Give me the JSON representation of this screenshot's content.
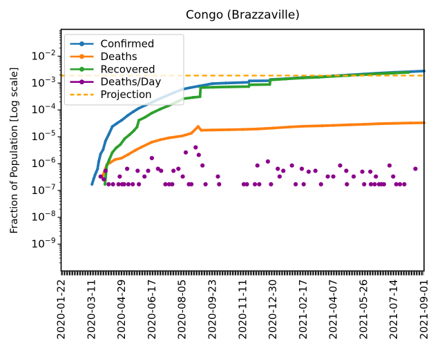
{
  "chart_data": {
    "type": "line",
    "title": "Congo (Brazzaville)",
    "ylabel": "Fraction of Population [Log scale]",
    "yscale": "log",
    "ylim": [
      1e-10,
      0.1
    ],
    "y_tick_exponents": [
      -2,
      -3,
      -4,
      -5,
      -6,
      -7,
      -8,
      -9
    ],
    "x_tick_labels": [
      "2020-01-22",
      "2020-03-11",
      "2020-04-29",
      "2020-06-17",
      "2020-08-05",
      "2020-09-23",
      "2020-11-11",
      "2020-12-30",
      "2021-02-17",
      "2021-04-07",
      "2021-05-26",
      "2021-07-14",
      "2021-09-01"
    ],
    "x_range_days": 588,
    "grid": false,
    "legend": {
      "position": "upper left",
      "entries": [
        {
          "label": "Confirmed",
          "color": "#1f77b4",
          "dashed": false,
          "marker": true
        },
        {
          "label": "Deaths",
          "color": "#ff7f0e",
          "dashed": false,
          "marker": true
        },
        {
          "label": "Recovered",
          "color": "#2ca02c",
          "dashed": false,
          "marker": true
        },
        {
          "label": "Deaths/Day",
          "color": "#8b008b",
          "dashed": false,
          "marker": true
        },
        {
          "label": "Projection",
          "color": "#ffa500",
          "dashed": true,
          "marker": false
        }
      ]
    },
    "projection": {
      "name": "Projection",
      "color": "#ffa500",
      "style": "dashed",
      "value": 0.0019
    },
    "series": [
      {
        "name": "Confirmed",
        "color": "#1f77b4",
        "kind": "line",
        "points": [
          [
            "2020-03-12",
            1.7e-07
          ],
          [
            "2020-03-15",
            2.8e-07
          ],
          [
            "2020-03-17",
            3.8e-07
          ],
          [
            "2020-03-19",
            4.9e-07
          ],
          [
            "2020-03-21",
            6.2e-07
          ],
          [
            "2020-03-23",
            1.2e-06
          ],
          [
            "2020-03-26",
            2.3e-06
          ],
          [
            "2020-03-30",
            3.3e-06
          ],
          [
            "2020-04-03",
            7e-06
          ],
          [
            "2020-04-08",
            1.2e-05
          ],
          [
            "2020-04-14",
            2.4e-05
          ],
          [
            "2020-04-21",
            3.1e-05
          ],
          [
            "2020-04-29",
            4.1e-05
          ],
          [
            "2020-05-09",
            6.2e-05
          ],
          [
            "2020-05-18",
            8.6e-05
          ],
          [
            "2020-05-27",
            0.000115
          ],
          [
            "2020-06-07",
            0.00015
          ],
          [
            "2020-06-17",
            0.00019
          ],
          [
            "2020-06-28",
            0.00025
          ],
          [
            "2020-07-10",
            0.00033
          ],
          [
            "2020-07-22",
            0.00043
          ],
          [
            "2020-08-05",
            0.00058
          ],
          [
            "2020-08-18",
            0.00067
          ],
          [
            "2020-09-01",
            0.00077
          ],
          [
            "2020-09-23",
            0.00095
          ],
          [
            "2020-10-15",
            0.001
          ],
          [
            "2020-11-11",
            0.00105
          ],
          [
            "2020-11-21",
            0.00107
          ],
          [
            "2020-11-22",
            0.0012
          ],
          [
            "2020-12-24",
            0.00122
          ],
          [
            "2020-12-26",
            0.00135
          ],
          [
            "2021-01-20",
            0.00145
          ],
          [
            "2021-02-17",
            0.0016
          ],
          [
            "2021-03-15",
            0.0017
          ],
          [
            "2021-04-07",
            0.00185
          ],
          [
            "2021-05-01",
            0.002
          ],
          [
            "2021-05-26",
            0.00215
          ],
          [
            "2021-06-15",
            0.0023
          ],
          [
            "2021-07-14",
            0.0025
          ],
          [
            "2021-08-10",
            0.00265
          ],
          [
            "2021-09-01",
            0.0028
          ]
        ]
      },
      {
        "name": "Deaths",
        "color": "#ff7f0e",
        "kind": "line",
        "points": [
          [
            "2020-03-29",
            3.3e-07
          ],
          [
            "2020-04-05",
            9e-07
          ],
          [
            "2020-04-11",
            1.1e-06
          ],
          [
            "2020-04-18",
            1.4e-06
          ],
          [
            "2020-04-29",
            1.6e-06
          ],
          [
            "2020-05-10",
            2.2e-06
          ],
          [
            "2020-05-21",
            3.1e-06
          ],
          [
            "2020-06-01",
            4.2e-06
          ],
          [
            "2020-06-17",
            6.3e-06
          ],
          [
            "2020-07-01",
            7.8e-06
          ],
          [
            "2020-07-15",
            9.1e-06
          ],
          [
            "2020-08-05",
            1.07e-05
          ],
          [
            "2020-08-20",
            1.35e-05
          ],
          [
            "2020-08-31",
            2.4e-05
          ],
          [
            "2020-09-05",
            1.75e-05
          ],
          [
            "2020-09-23",
            1.78e-05
          ],
          [
            "2020-10-20",
            1.82e-05
          ],
          [
            "2020-11-11",
            1.87e-05
          ],
          [
            "2020-12-05",
            1.95e-05
          ],
          [
            "2020-12-30",
            2.1e-05
          ],
          [
            "2021-01-25",
            2.3e-05
          ],
          [
            "2021-02-17",
            2.45e-05
          ],
          [
            "2021-03-20",
            2.55e-05
          ],
          [
            "2021-04-07",
            2.65e-05
          ],
          [
            "2021-05-05",
            2.8e-05
          ],
          [
            "2021-05-26",
            2.9e-05
          ],
          [
            "2021-06-20",
            3.05e-05
          ],
          [
            "2021-07-14",
            3.15e-05
          ],
          [
            "2021-08-10",
            3.25e-05
          ],
          [
            "2021-09-01",
            3.3e-05
          ]
        ]
      },
      {
        "name": "Recovered",
        "color": "#2ca02c",
        "kind": "line",
        "points": [
          [
            "2020-04-02",
            1.7e-07
          ],
          [
            "2020-04-05",
            8.5e-07
          ],
          [
            "2020-04-09",
            1.4e-06
          ],
          [
            "2020-04-14",
            2.6e-06
          ],
          [
            "2020-04-20",
            3.8e-06
          ],
          [
            "2020-04-27",
            5.1e-06
          ],
          [
            "2020-05-04",
            8.5e-06
          ],
          [
            "2020-05-12",
            1.2e-05
          ],
          [
            "2020-05-19",
            1.7e-05
          ],
          [
            "2020-05-24",
            2.3e-05
          ],
          [
            "2020-05-27",
            4.1e-05
          ],
          [
            "2020-06-06",
            5.3e-05
          ],
          [
            "2020-06-17",
            7.6e-05
          ],
          [
            "2020-06-30",
            0.000105
          ],
          [
            "2020-07-13",
            0.00014
          ],
          [
            "2020-07-26",
            0.00019
          ],
          [
            "2020-08-07",
            0.00026
          ],
          [
            "2020-08-22",
            0.00029
          ],
          [
            "2020-09-03",
            0.00031
          ],
          [
            "2020-09-04",
            0.00068
          ],
          [
            "2020-09-25",
            0.0007
          ],
          [
            "2020-10-20",
            0.00072
          ],
          [
            "2020-11-21",
            0.00074
          ],
          [
            "2020-11-22",
            0.00086
          ],
          [
            "2020-12-25",
            0.00088
          ],
          [
            "2020-12-26",
            0.0013
          ],
          [
            "2021-01-20",
            0.00142
          ],
          [
            "2021-02-17",
            0.00155
          ],
          [
            "2021-03-15",
            0.00165
          ],
          [
            "2021-04-07",
            0.00178
          ],
          [
            "2021-05-01",
            0.00192
          ],
          [
            "2021-05-26",
            0.00205
          ],
          [
            "2021-06-15",
            0.0022
          ],
          [
            "2021-07-14",
            0.00235
          ],
          [
            "2021-08-07",
            0.0025
          ]
        ]
      },
      {
        "name": "Deaths/Day",
        "color": "#8b008b",
        "kind": "scatter",
        "points": [
          [
            "2020-03-26",
            3.3e-07
          ],
          [
            "2020-03-31",
            2.6e-07
          ],
          [
            "2020-04-03",
            5.4e-07
          ],
          [
            "2020-04-08",
            1.7e-07
          ],
          [
            "2020-04-15",
            1.7e-07
          ],
          [
            "2020-04-24",
            1.7e-07
          ],
          [
            "2020-04-26",
            3.3e-07
          ],
          [
            "2020-04-30",
            1.7e-07
          ],
          [
            "2020-05-03",
            1.7e-07
          ],
          [
            "2020-05-08",
            6.4e-07
          ],
          [
            "2020-05-10",
            1.7e-07
          ],
          [
            "2020-05-17",
            1.7e-07
          ],
          [
            "2020-05-25",
            5.4e-07
          ],
          [
            "2020-05-27",
            1.7e-07
          ],
          [
            "2020-06-05",
            3.3e-07
          ],
          [
            "2020-06-11",
            5.4e-07
          ],
          [
            "2020-06-17",
            1.6e-06
          ],
          [
            "2020-06-27",
            6.4e-07
          ],
          [
            "2020-07-02",
            5.4e-07
          ],
          [
            "2020-07-09",
            1.7e-07
          ],
          [
            "2020-07-15",
            1.7e-07
          ],
          [
            "2020-07-20",
            1.7e-07
          ],
          [
            "2020-07-22",
            5.4e-07
          ],
          [
            "2020-07-30",
            6.4e-07
          ],
          [
            "2020-08-06",
            3.3e-07
          ],
          [
            "2020-08-11",
            2.6e-06
          ],
          [
            "2020-08-16",
            1.7e-07
          ],
          [
            "2020-08-20",
            1.7e-07
          ],
          [
            "2020-08-27",
            4e-06
          ],
          [
            "2020-09-01",
            2.1e-06
          ],
          [
            "2020-09-07",
            8.5e-07
          ],
          [
            "2020-09-12",
            1.7e-07
          ],
          [
            "2020-10-02",
            3.3e-07
          ],
          [
            "2020-10-04",
            1.7e-07
          ],
          [
            "2020-11-13",
            1.7e-07
          ],
          [
            "2020-11-18",
            1.7e-07
          ],
          [
            "2020-12-01",
            1.7e-07
          ],
          [
            "2020-12-05",
            8.5e-07
          ],
          [
            "2020-12-08",
            1.7e-07
          ],
          [
            "2020-12-22",
            1.2e-06
          ],
          [
            "2020-12-27",
            1.7e-07
          ],
          [
            "2021-01-07",
            6.4e-07
          ],
          [
            "2021-01-10",
            3.3e-07
          ],
          [
            "2021-01-16",
            5.4e-07
          ],
          [
            "2021-01-30",
            8.5e-07
          ],
          [
            "2021-02-05",
            1.7e-07
          ],
          [
            "2021-02-15",
            6.4e-07
          ],
          [
            "2021-02-18",
            1.7e-07
          ],
          [
            "2021-02-26",
            5e-07
          ],
          [
            "2021-03-09",
            5.4e-07
          ],
          [
            "2021-03-18",
            1.7e-07
          ],
          [
            "2021-03-29",
            3.3e-07
          ],
          [
            "2021-04-07",
            3.3e-07
          ],
          [
            "2021-04-18",
            8.5e-07
          ],
          [
            "2021-04-28",
            5.4e-07
          ],
          [
            "2021-04-29",
            1.7e-07
          ],
          [
            "2021-05-10",
            3.3e-07
          ],
          [
            "2021-05-24",
            5e-07
          ],
          [
            "2021-05-27",
            1.7e-07
          ],
          [
            "2021-06-06",
            5e-07
          ],
          [
            "2021-06-07",
            1.7e-07
          ],
          [
            "2021-06-13",
            1.7e-07
          ],
          [
            "2021-06-15",
            3.3e-07
          ],
          [
            "2021-06-20",
            1.7e-07
          ],
          [
            "2021-06-24",
            1.7e-07
          ],
          [
            "2021-06-28",
            1.7e-07
          ],
          [
            "2021-07-07",
            8.5e-07
          ],
          [
            "2021-07-13",
            3.3e-07
          ],
          [
            "2021-07-18",
            1.7e-07
          ],
          [
            "2021-07-24",
            1.7e-07
          ],
          [
            "2021-07-31",
            1.7e-07
          ],
          [
            "2021-08-18",
            6.4e-07
          ]
        ]
      }
    ]
  }
}
